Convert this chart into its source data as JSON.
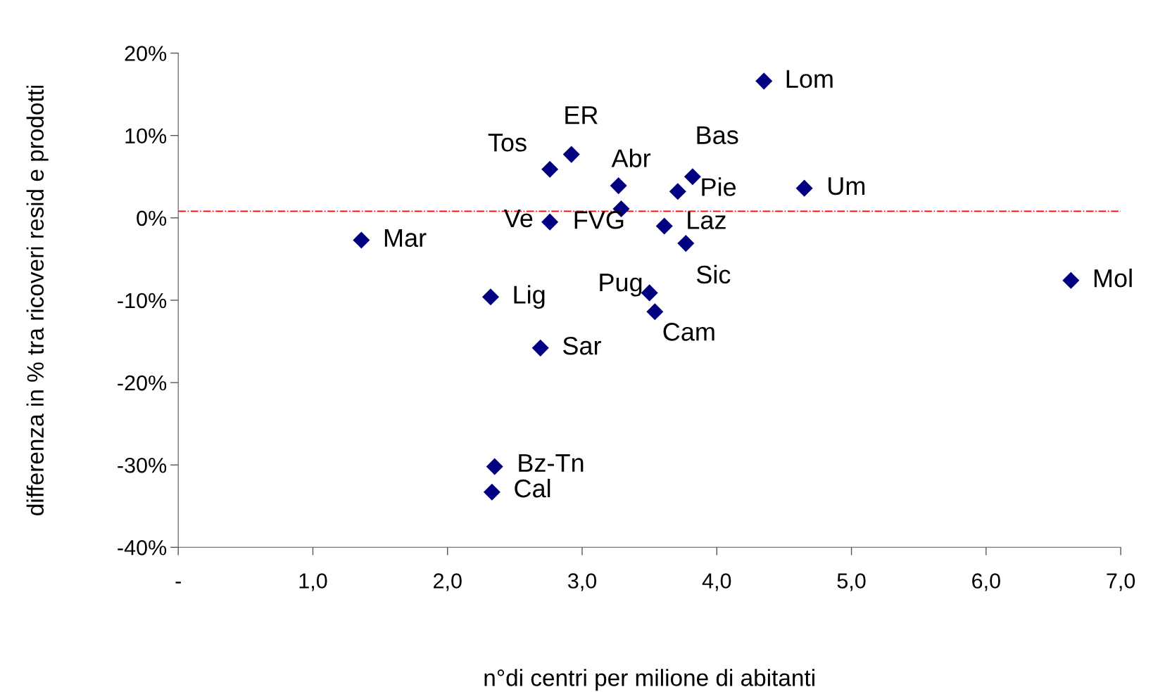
{
  "chart_data": {
    "type": "scatter",
    "xlabel": "n°di centri per milione di abitanti",
    "ylabel": "differenza in % tra ricoveri resid e prodotti",
    "series": [
      {
        "color": "#000080",
        "x": [
          4.35,
          2.92,
          2.76,
          3.27,
          3.82,
          3.71,
          4.65,
          2.76,
          3.29,
          3.61,
          1.36,
          3.77,
          3.5,
          2.32,
          6.63,
          3.54,
          2.69,
          2.35,
          2.33
        ],
        "values": [
          16.6,
          7.7,
          5.9,
          3.9,
          5.0,
          3.2,
          3.6,
          -0.5,
          1.1,
          -1.0,
          -2.7,
          -3.1,
          -9.1,
          -9.6,
          -7.6,
          -11.4,
          -15.8,
          -30.2,
          -33.3
        ]
      }
    ],
    "annotations": [
      {
        "text": "Lom",
        "x": 4.35,
        "y": 16.6
      },
      {
        "text": "ER",
        "x": 2.92,
        "y": 7.7
      },
      {
        "text": "Tos",
        "x": 2.76,
        "y": 5.9
      },
      {
        "text": "Abr",
        "x": 3.27,
        "y": 3.9
      },
      {
        "text": "Bas",
        "x": 3.82,
        "y": 5.0
      },
      {
        "text": "Pie",
        "x": 3.71,
        "y": 3.2
      },
      {
        "text": "Um",
        "x": 4.65,
        "y": 3.6
      },
      {
        "text": "Ve",
        "x": 2.76,
        "y": -0.5
      },
      {
        "text": "FVG",
        "x": 3.29,
        "y": 1.1
      },
      {
        "text": "Laz",
        "x": 3.61,
        "y": -1.0
      },
      {
        "text": "Mar",
        "x": 1.36,
        "y": -2.7
      },
      {
        "text": "Sic",
        "x": 3.77,
        "y": -3.1
      },
      {
        "text": "Pug",
        "x": 3.5,
        "y": -9.1
      },
      {
        "text": "Lig",
        "x": 2.32,
        "y": -9.6
      },
      {
        "text": "Mol",
        "x": 6.63,
        "y": -7.6
      },
      {
        "text": "Cam",
        "x": 3.54,
        "y": -11.4
      },
      {
        "text": "Sar",
        "x": 2.69,
        "y": -15.8
      },
      {
        "text": "Bz-Tn",
        "x": 2.35,
        "y": -30.2
      },
      {
        "text": "Cal",
        "x": 2.33,
        "y": -33.3
      }
    ],
    "ref_lines": [
      {
        "axis": "y",
        "value": 0.8,
        "color": "#ff0000",
        "line_style": "dashdot"
      }
    ],
    "xlim": [
      0,
      7
    ],
    "xticks": [
      {
        "value": 0,
        "label": "-"
      },
      {
        "value": 1,
        "label": "1,0"
      },
      {
        "value": 2,
        "label": "2,0"
      },
      {
        "value": 3,
        "label": "3,0"
      },
      {
        "value": 4,
        "label": "4,0"
      },
      {
        "value": 5,
        "label": "5,0"
      },
      {
        "value": 6,
        "label": "6,0"
      },
      {
        "value": 7,
        "label": "7,0"
      }
    ],
    "ylim": [
      -40,
      20
    ],
    "yticks": [
      {
        "value": -40,
        "label": "-40%"
      },
      {
        "value": -30,
        "label": "-30%"
      },
      {
        "value": -20,
        "label": "-20%"
      },
      {
        "value": -10,
        "label": "-10%"
      },
      {
        "value": 0,
        "label": "0%"
      },
      {
        "value": 10,
        "label": "10%"
      },
      {
        "value": 20,
        "label": "20%"
      }
    ],
    "marker": "diamond",
    "grid": false,
    "legend": false
  }
}
